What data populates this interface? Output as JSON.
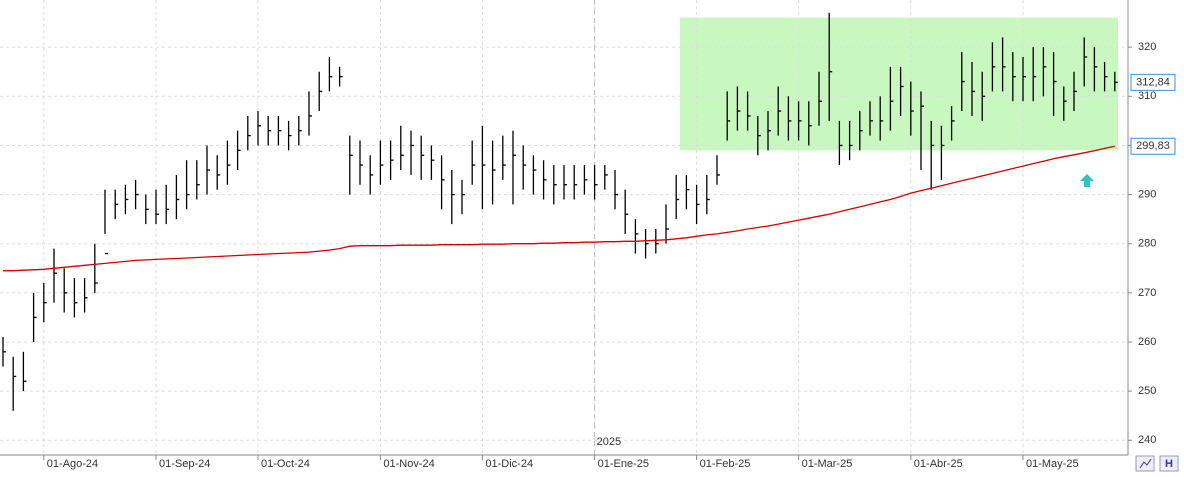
{
  "chart_data": {
    "type": "hlc",
    "categories": [
      null,
      null,
      null,
      null,
      "01-Ago-24",
      null,
      null,
      null,
      null,
      null,
      null,
      null,
      null,
      null,
      null,
      "01-Sep-24",
      null,
      null,
      null,
      null,
      null,
      null,
      null,
      null,
      null,
      "01-Oct-24",
      null,
      null,
      null,
      null,
      null,
      null,
      null,
      null,
      null,
      null,
      null,
      "01-Nov-24",
      null,
      null,
      null,
      null,
      null,
      null,
      null,
      null,
      null,
      "01-Dic-24",
      null,
      null,
      null,
      null,
      null,
      null,
      null,
      null,
      null,
      null,
      "01-Ene-25",
      null,
      null,
      null,
      null,
      null,
      null,
      null,
      null,
      null,
      "01-Feb-25",
      null,
      null,
      null,
      null,
      null,
      null,
      null,
      null,
      null,
      "01-Mar-25",
      null,
      null,
      null,
      null,
      null,
      null,
      null,
      null,
      null,
      null,
      "01-Abr-25",
      null,
      null,
      null,
      null,
      null,
      null,
      null,
      null,
      null,
      null,
      "01-May-25",
      null,
      null,
      null,
      null,
      null,
      null,
      null,
      null,
      null
    ],
    "high": [
      261,
      257,
      258,
      270,
      272,
      279,
      275,
      273,
      273,
      280,
      291,
      291,
      292,
      293,
      290,
      291,
      292,
      294,
      297,
      297,
      300,
      298,
      301,
      303,
      306,
      307,
      306,
      306,
      305,
      306,
      311,
      315,
      318,
      316,
      302,
      301,
      298,
      301,
      301,
      304,
      303,
      302,
      300,
      298,
      295,
      293,
      301,
      304,
      301,
      302,
      303,
      300,
      298,
      297,
      296,
      296,
      296,
      296,
      296,
      296,
      295,
      291,
      285,
      283,
      283,
      288,
      294,
      294,
      292,
      294,
      298,
      311,
      312,
      311,
      306,
      307,
      312,
      310,
      309,
      309,
      315,
      327,
      305,
      305,
      307,
      309,
      310,
      316,
      316,
      313,
      311,
      305,
      304,
      308,
      319,
      317,
      315,
      321,
      322,
      319,
      318,
      320,
      320,
      319,
      312,
      315,
      322,
      320,
      317,
      315
    ],
    "low": [
      255,
      246,
      250,
      260,
      264,
      268,
      266,
      265,
      266,
      270,
      282,
      285,
      286,
      287,
      284,
      284,
      284,
      285,
      287,
      289,
      290,
      291,
      292,
      295,
      299,
      300,
      300,
      300,
      299,
      300,
      302,
      307,
      311,
      312,
      290,
      292,
      290,
      292,
      293,
      295,
      294,
      293,
      293,
      287,
      284,
      286,
      292,
      287,
      288,
      293,
      288,
      291,
      290,
      289,
      288,
      289,
      289,
      290,
      289,
      291,
      287,
      282,
      278,
      277,
      278,
      280,
      285,
      287,
      284,
      286,
      292,
      301,
      303,
      303,
      298,
      299,
      302,
      301,
      301,
      300,
      304,
      305,
      296,
      297,
      299,
      302,
      301,
      303,
      306,
      302,
      295,
      291,
      293,
      301,
      307,
      306,
      305,
      311,
      311,
      309,
      309,
      309,
      310,
      306,
      305,
      307,
      312,
      311,
      311,
      311
    ],
    "close": [
      258,
      253,
      252,
      265,
      268,
      274,
      270,
      268,
      269,
      272,
      278,
      288,
      289,
      290,
      287,
      286,
      287,
      289,
      290,
      292,
      295,
      294,
      296,
      299,
      302,
      304,
      303,
      303,
      302,
      303,
      306,
      311,
      314,
      314,
      298,
      296,
      294,
      296,
      297,
      298,
      300,
      298,
      297,
      293,
      290,
      290,
      296,
      296,
      295,
      296,
      298,
      296,
      295,
      293,
      292,
      292,
      292,
      293,
      292,
      294,
      290,
      286,
      282,
      280,
      280,
      283,
      289,
      291,
      288,
      289,
      294,
      305,
      307,
      306,
      302,
      303,
      307,
      305,
      305,
      304,
      309,
      315,
      300,
      300,
      303,
      305,
      305,
      309,
      312,
      307,
      308,
      300,
      300,
      305,
      313,
      311,
      310,
      316,
      316,
      314,
      314,
      314,
      316,
      313,
      309,
      311,
      318,
      316,
      314,
      312.84
    ],
    "color": "#000000",
    "ma": {
      "color": "#d40000",
      "values": [
        274.5,
        274.5,
        274.6,
        274.7,
        274.8,
        275,
        275.2,
        275.4,
        275.6,
        275.8,
        276,
        276.2,
        276.4,
        276.6,
        276.7,
        276.8,
        276.9,
        277,
        277.1,
        277.2,
        277.3,
        277.4,
        277.5,
        277.6,
        277.7,
        277.8,
        277.9,
        278,
        278.1,
        278.2,
        278.3,
        278.5,
        278.7,
        279,
        279.5,
        279.6,
        279.6,
        279.6,
        279.6,
        279.7,
        279.7,
        279.7,
        279.7,
        279.8,
        279.8,
        279.8,
        279.8,
        279.9,
        279.9,
        279.9,
        280,
        280,
        280,
        280.1,
        280.1,
        280.2,
        280.2,
        280.3,
        280.3,
        280.4,
        280.4,
        280.5,
        280.5,
        280.6,
        280.7,
        280.8,
        281,
        281.2,
        281.5,
        281.8,
        282,
        282.3,
        282.6,
        283,
        283.3,
        283.6,
        284,
        284.4,
        284.8,
        285.2,
        285.6,
        286,
        286.5,
        287,
        287.5,
        288,
        288.5,
        289,
        289.6,
        290.3,
        290.8,
        291.3,
        291.8,
        292.3,
        292.8,
        293.3,
        293.8,
        294.3,
        294.8,
        295.3,
        295.8,
        296.3,
        296.8,
        297.3,
        297.7,
        298.1,
        298.5,
        298.9,
        299.4,
        299.83
      ]
    },
    "zone": {
      "low": 299,
      "high": 326,
      "color": "#c8f7c0"
    },
    "ylim": [
      237,
      329.6
    ],
    "yticks": [
      240,
      250,
      260,
      270,
      280,
      290,
      300,
      310,
      320
    ],
    "last_labels": [
      {
        "value": 312.84,
        "label": "312,84"
      },
      {
        "value": 299.83,
        "label": "299,83"
      }
    ],
    "year_divider": {
      "label": "2025",
      "at": "01-Ene-25"
    },
    "grid": true
  }
}
